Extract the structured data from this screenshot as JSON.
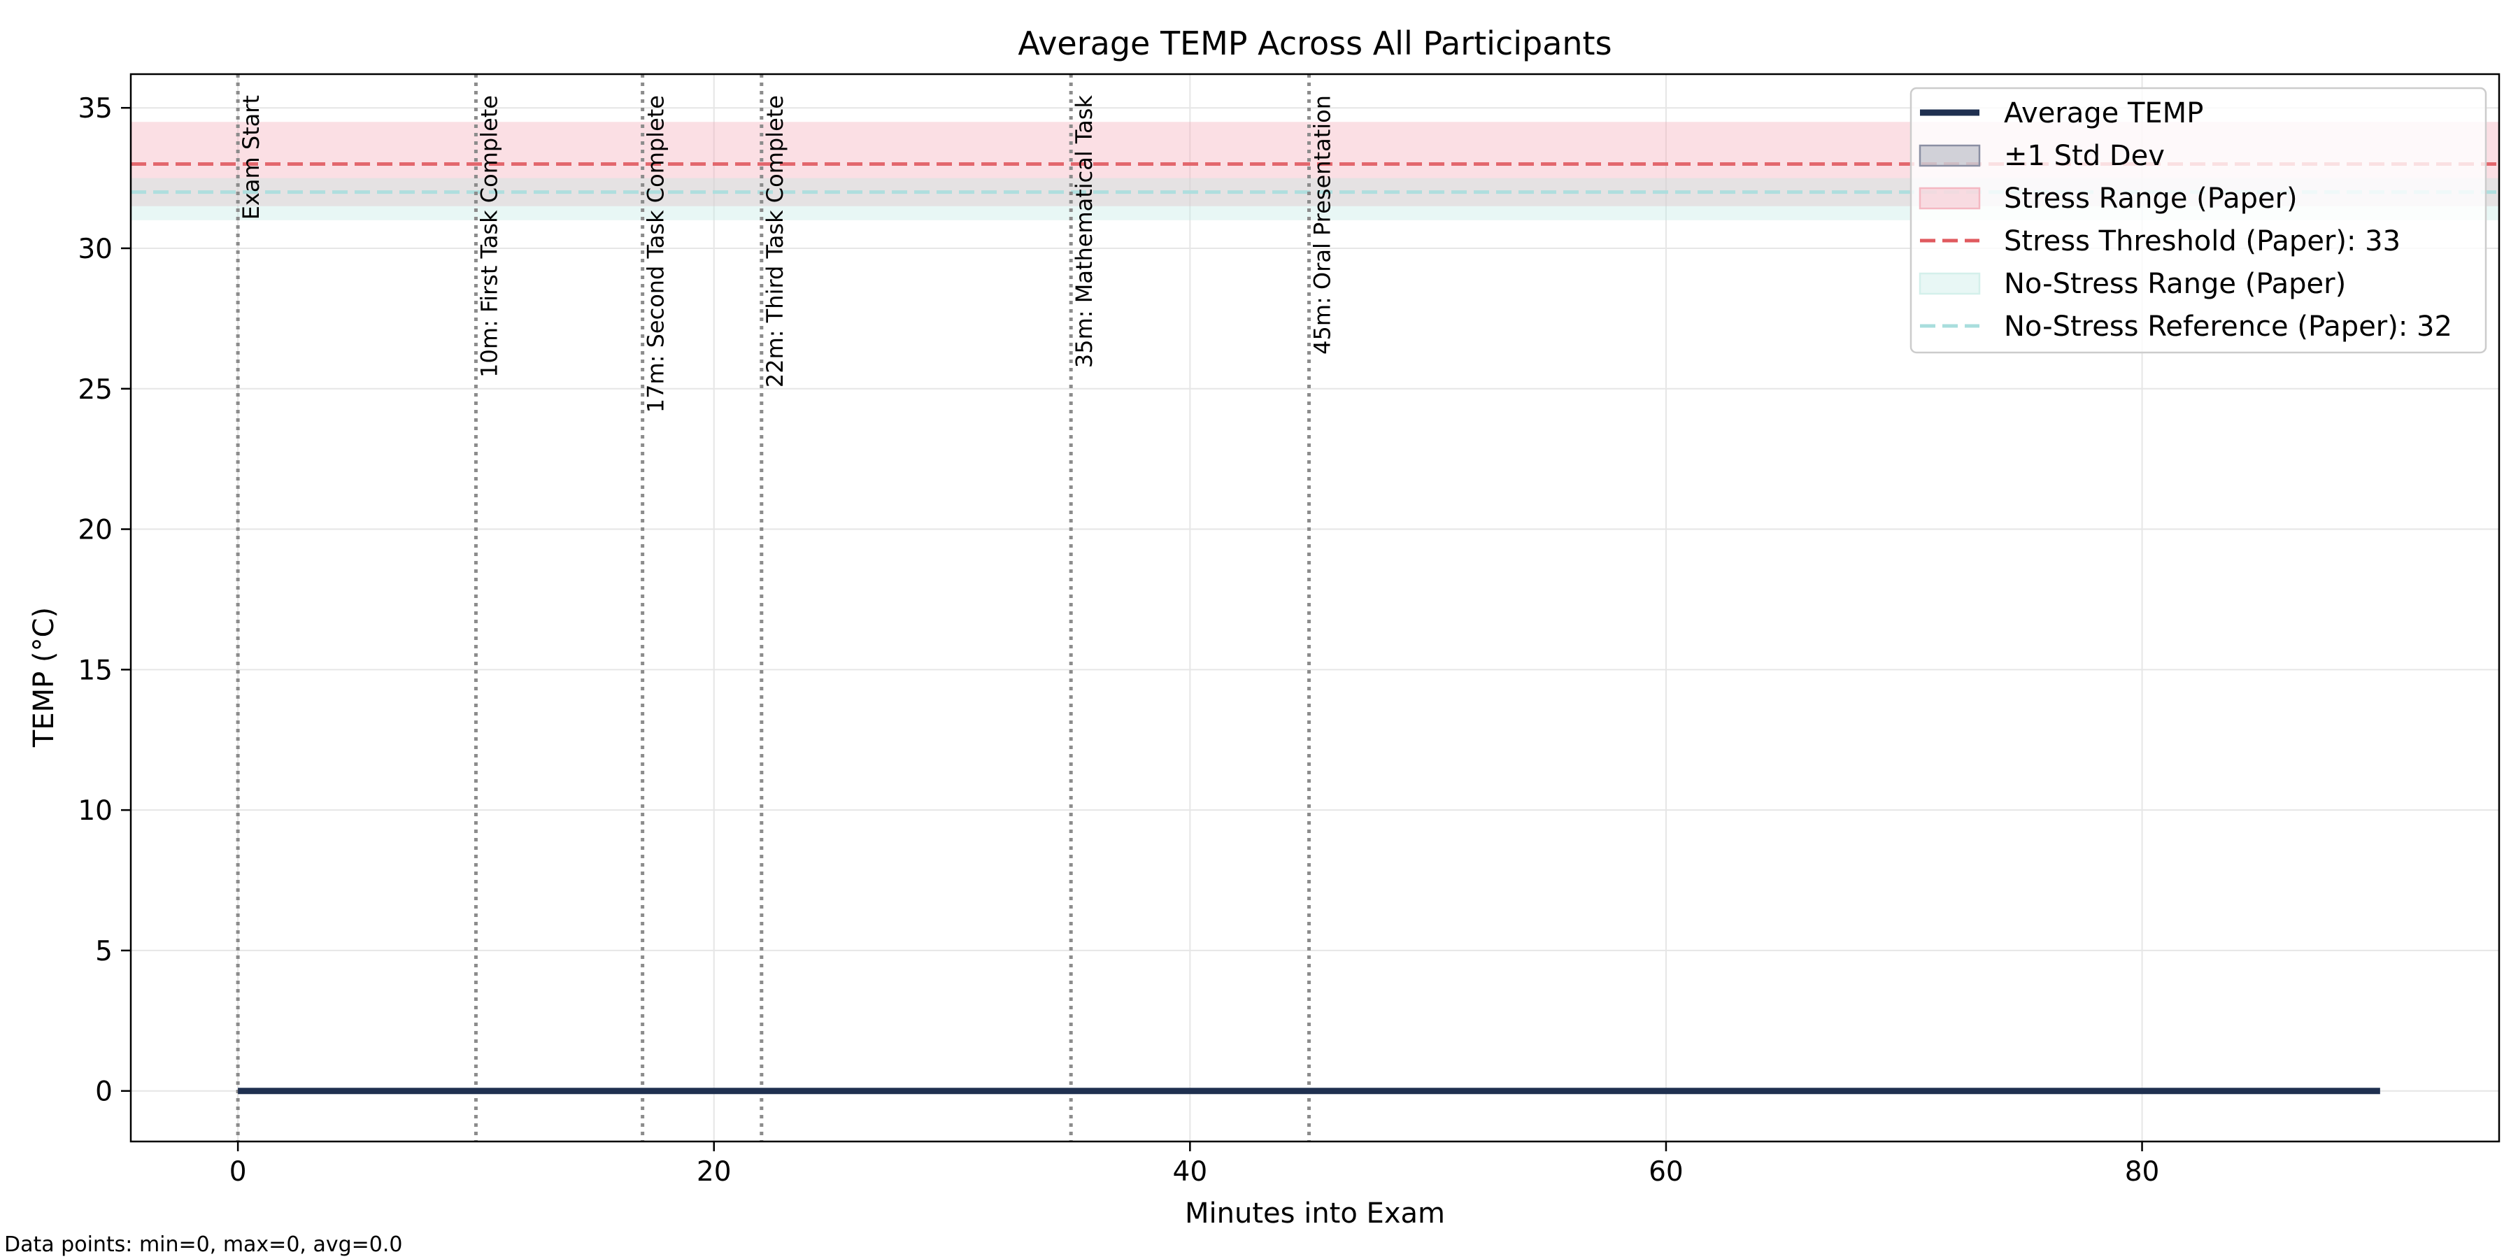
{
  "chart_data": {
    "type": "line",
    "title": "Average TEMP Across All Participants",
    "xlabel": "Minutes into Exam",
    "ylabel": "TEMP (°C)",
    "xlim": [
      -4.5,
      95
    ],
    "ylim": [
      -1.8,
      36.2
    ],
    "x_ticks": [
      0,
      20,
      40,
      60,
      80
    ],
    "y_ticks": [
      0,
      5,
      10,
      15,
      20,
      25,
      30,
      35
    ],
    "grid": true,
    "legend_position": "top-right",
    "series": [
      {
        "name": "Average TEMP",
        "x": [
          0,
          90
        ],
        "y": [
          0,
          0
        ],
        "color": "#1f3050"
      }
    ],
    "std_dev_band": {
      "name": "±1 Std Dev",
      "x": [
        0,
        90
      ],
      "lower": [
        0,
        0
      ],
      "upper": [
        0,
        0
      ],
      "color": "#1f3050"
    },
    "stress_range": {
      "name": "Stress Range (Paper)",
      "low": 31.5,
      "high": 34.5,
      "color": "#f4a3b1"
    },
    "stress_threshold": {
      "name": "Stress Threshold (Paper): 33",
      "value": 33,
      "color": "#e05a5f"
    },
    "no_stress_range": {
      "name": "No-Stress Range (Paper)",
      "low": 31,
      "high": 32.5,
      "color": "#bde8e1"
    },
    "no_stress_reference": {
      "name": "No-Stress Reference (Paper): 32",
      "value": 32,
      "color": "#a8dedd"
    },
    "events": [
      {
        "x": 0,
        "label": "Exam Start"
      },
      {
        "x": 10,
        "label": "10m: First Task Complete"
      },
      {
        "x": 17,
        "label": "17m: Second Task Complete"
      },
      {
        "x": 22,
        "label": "22m: Third Task Complete"
      },
      {
        "x": 35,
        "label": "35m: Mathematical Task"
      },
      {
        "x": 45,
        "label": "45m: Oral Presentation"
      }
    ],
    "footnote": "Data points: min=0, max=0, avg=0.0"
  }
}
